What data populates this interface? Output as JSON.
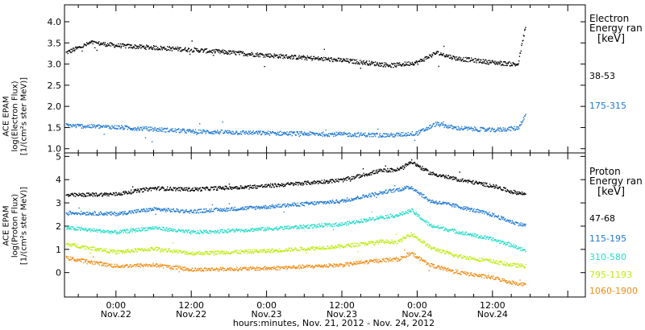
{
  "chart_data": {
    "type": "scatter",
    "xlabel": "hours:minutes, Nov. 21, 2012 - Nov. 24, 2012",
    "x_ticks": [
      {
        "top": "0:00",
        "bottom": "Nov.22",
        "hours": 0
      },
      {
        "top": "12:00",
        "bottom": "Nov.22",
        "hours": 12
      },
      {
        "top": "0:00",
        "bottom": "Nov.23",
        "hours": 24
      },
      {
        "top": "12:00",
        "bottom": "Nov.23",
        "hours": 36
      },
      {
        "top": "0:00",
        "bottom": "Nov.24",
        "hours": 48
      },
      {
        "top": "12:00",
        "bottom": "Nov.24",
        "hours": 60
      }
    ],
    "xlim_hours": [
      -8.2,
      74.8
    ],
    "data_end_hours": 65.2,
    "panels": [
      {
        "id": "electron",
        "ylabel_lines": [
          "ACE EPAM",
          "log(Electron Flux)",
          "[1/(cm²s ster MeV)]"
        ],
        "ylim": [
          0.9,
          4.4
        ],
        "yticks": [
          1.0,
          1.5,
          2.0,
          2.5,
          3.0,
          3.5,
          4.0
        ],
        "legend_title": [
          "Electron",
          "Energy ran",
          "[keV]"
        ],
        "series": [
          {
            "name": "38-53",
            "color": "#000000",
            "profile": [
              [
                -8,
                3.28
              ],
              [
                -4,
                3.52
              ],
              [
                0,
                3.45
              ],
              [
                12,
                3.35
              ],
              [
                24,
                3.22
              ],
              [
                36,
                3.1
              ],
              [
                44,
                2.98
              ],
              [
                48,
                3.05
              ],
              [
                51,
                3.28
              ],
              [
                54,
                3.15
              ],
              [
                60,
                3.05
              ],
              [
                64,
                3.0
              ],
              [
                65.2,
                3.9
              ]
            ]
          },
          {
            "name": "175-315",
            "color": "#1e78d2",
            "profile": [
              [
                -8,
                1.56
              ],
              [
                0,
                1.52
              ],
              [
                12,
                1.42
              ],
              [
                24,
                1.38
              ],
              [
                36,
                1.35
              ],
              [
                44,
                1.33
              ],
              [
                48,
                1.38
              ],
              [
                51,
                1.6
              ],
              [
                54,
                1.5
              ],
              [
                60,
                1.45
              ],
              [
                64,
                1.5
              ],
              [
                65.2,
                1.8
              ]
            ]
          }
        ]
      },
      {
        "id": "proton",
        "ylabel_lines": [
          "ACE EPAM",
          "log(Proton Flux)",
          "[1/(cm²s ster MeV)]"
        ],
        "ylim": [
          -1.05,
          5.15
        ],
        "yticks": [
          0,
          1,
          2,
          3,
          4,
          5
        ],
        "legend_title": [
          "Proton",
          "Energy ran",
          "[keV]"
        ],
        "series": [
          {
            "name": "47-68",
            "color": "#000000",
            "profile": [
              [
                -8,
                3.35
              ],
              [
                0,
                3.4
              ],
              [
                6,
                3.65
              ],
              [
                12,
                3.6
              ],
              [
                24,
                3.75
              ],
              [
                36,
                4.0
              ],
              [
                42,
                4.4
              ],
              [
                45,
                4.45
              ],
              [
                47,
                4.8
              ],
              [
                50,
                4.3
              ],
              [
                54,
                4.05
              ],
              [
                60,
                3.75
              ],
              [
                63,
                3.5
              ],
              [
                65.2,
                3.4
              ]
            ]
          },
          {
            "name": "115-195",
            "color": "#1e78d2",
            "profile": [
              [
                -8,
                2.6
              ],
              [
                0,
                2.55
              ],
              [
                6,
                2.75
              ],
              [
                12,
                2.65
              ],
              [
                24,
                2.85
              ],
              [
                36,
                3.1
              ],
              [
                42,
                3.45
              ],
              [
                45,
                3.6
              ],
              [
                47,
                3.7
              ],
              [
                50,
                3.1
              ],
              [
                54,
                2.9
              ],
              [
                60,
                2.5
              ],
              [
                63,
                2.2
              ],
              [
                65.2,
                2.05
              ]
            ]
          },
          {
            "name": "310-580",
            "color": "#22dcc8",
            "profile": [
              [
                -8,
                1.95
              ],
              [
                0,
                1.75
              ],
              [
                6,
                1.95
              ],
              [
                12,
                1.75
              ],
              [
                24,
                1.9
              ],
              [
                36,
                2.1
              ],
              [
                42,
                2.4
              ],
              [
                45,
                2.5
              ],
              [
                47,
                2.7
              ],
              [
                50,
                2.05
              ],
              [
                54,
                1.8
              ],
              [
                60,
                1.45
              ],
              [
                63,
                1.2
              ],
              [
                65.2,
                0.95
              ]
            ]
          },
          {
            "name": "795-1193",
            "color": "#bcec10",
            "profile": [
              [
                -8,
                1.25
              ],
              [
                0,
                0.9
              ],
              [
                6,
                1.05
              ],
              [
                12,
                0.85
              ],
              [
                24,
                0.95
              ],
              [
                36,
                1.15
              ],
              [
                42,
                1.35
              ],
              [
                45,
                1.35
              ],
              [
                47,
                1.7
              ],
              [
                50,
                1.1
              ],
              [
                54,
                0.75
              ],
              [
                60,
                0.5
              ],
              [
                63,
                0.35
              ],
              [
                65.2,
                0.3
              ]
            ]
          },
          {
            "name": "1060-1900",
            "color": "#f08c14",
            "profile": [
              [
                -8,
                0.65
              ],
              [
                0,
                0.3
              ],
              [
                6,
                0.35
              ],
              [
                12,
                0.15
              ],
              [
                24,
                0.2
              ],
              [
                36,
                0.35
              ],
              [
                42,
                0.55
              ],
              [
                45,
                0.6
              ],
              [
                47,
                0.85
              ],
              [
                50,
                0.35
              ],
              [
                54,
                0.05
              ],
              [
                60,
                -0.2
              ],
              [
                63,
                -0.4
              ],
              [
                65.2,
                -0.5
              ]
            ]
          }
        ]
      }
    ]
  }
}
